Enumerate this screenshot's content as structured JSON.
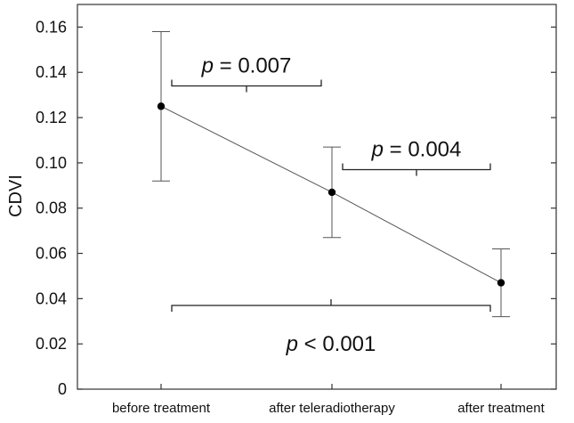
{
  "chart_data": {
    "type": "line",
    "title": "",
    "xlabel": "",
    "ylabel": "CDVI",
    "categories": [
      "before treatment",
      "after teleradiotherapy",
      "after treatment"
    ],
    "series": [
      {
        "values": [
          0.125,
          0.087,
          0.047
        ],
        "error_low": [
          0.092,
          0.067,
          0.032
        ],
        "error_high": [
          0.158,
          0.107,
          0.062
        ]
      }
    ],
    "ylim": [
      0,
      0.17
    ],
    "yticks": [
      "0",
      "0.02",
      "0.04",
      "0.06",
      "0.08",
      "0.10",
      "0.12",
      "0.14",
      "0.16"
    ],
    "ytick_values": [
      0,
      0.02,
      0.04,
      0.06,
      0.08,
      0.1,
      0.12,
      0.14,
      0.16
    ],
    "grid": false,
    "annotations": [
      {
        "p_symbol": "p",
        "rest": " = 0.007",
        "from": 0,
        "to": 1,
        "bracket_y": 0.134,
        "label_y": 0.143
      },
      {
        "p_symbol": "p",
        "rest": " = 0.004",
        "from": 1,
        "to": 2,
        "bracket_y": 0.097,
        "label_y": 0.106
      },
      {
        "p_symbol": "p",
        "rest": " < 0.001",
        "from": 0,
        "to": 2,
        "bracket_y": 0.037,
        "label_y": 0.02
      }
    ],
    "colors": {
      "line": "#555555",
      "marker": "#000000",
      "axis": "#333333"
    }
  }
}
